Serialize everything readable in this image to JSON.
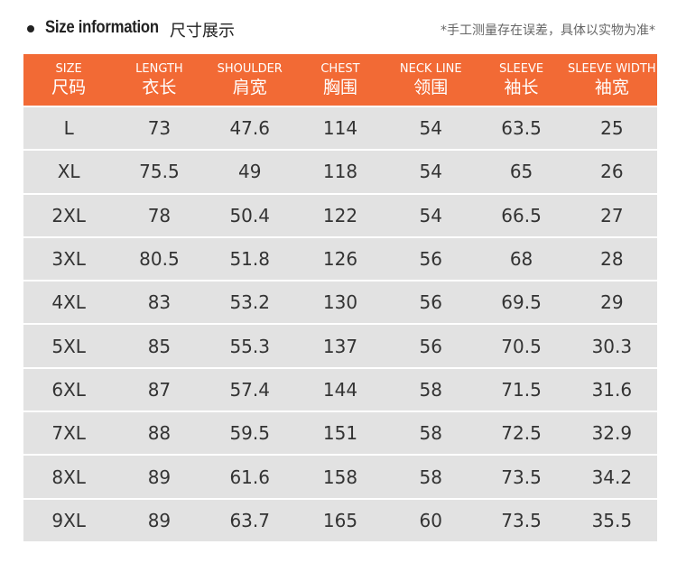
{
  "header": {
    "title": "Size information",
    "subtitle": "尺寸展示",
    "note": "*手工测量存在误差，具体以实物为准*"
  },
  "table": {
    "columns": [
      {
        "en": "SIZE",
        "zh": "尺码"
      },
      {
        "en": "LENGTH",
        "zh": "衣长"
      },
      {
        "en": "SHOULDER",
        "zh": "肩宽"
      },
      {
        "en": "CHEST",
        "zh": "胸围"
      },
      {
        "en": "NECK LINE",
        "zh": "领围"
      },
      {
        "en": "SLEEVE",
        "zh": "袖长"
      },
      {
        "en": "SLEEVE WIDTH",
        "zh": "袖宽"
      }
    ],
    "rows": [
      [
        "L",
        73,
        47.6,
        114,
        54,
        63.5,
        25
      ],
      [
        "XL",
        75.5,
        49,
        118,
        54,
        65,
        26
      ],
      [
        "2XL",
        78,
        50.4,
        122,
        54,
        66.5,
        27
      ],
      [
        "3XL",
        80.5,
        51.8,
        126,
        56,
        68,
        28
      ],
      [
        "4XL",
        83,
        53.2,
        130,
        56,
        69.5,
        29
      ],
      [
        "5XL",
        85,
        55.3,
        137,
        56,
        70.5,
        30.3
      ],
      [
        "6XL",
        87,
        57.4,
        144,
        58,
        71.5,
        31.6
      ],
      [
        "7XL",
        88,
        59.5,
        151,
        58,
        72.5,
        32.9
      ],
      [
        "8XL",
        89,
        61.6,
        158,
        58,
        73.5,
        34.2
      ],
      [
        "9XL",
        89,
        63.7,
        165,
        60,
        73.5,
        35.5
      ]
    ]
  }
}
